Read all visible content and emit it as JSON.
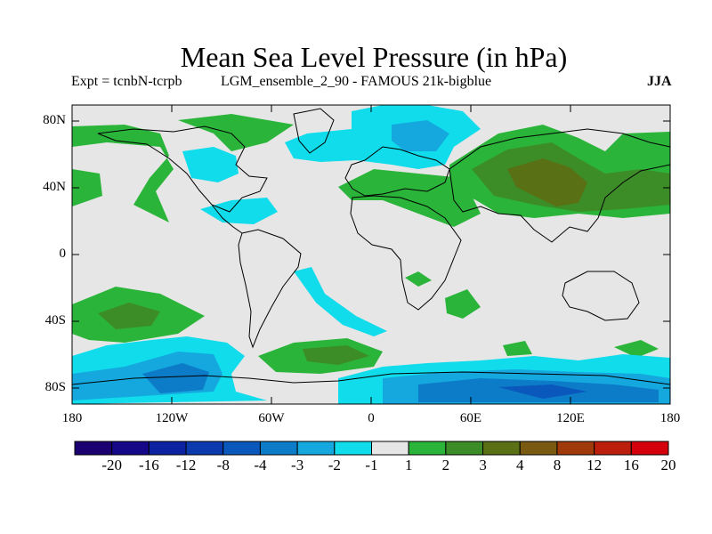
{
  "title": "Mean Sea Level Pressure (in hPa)",
  "subtitle_left": "Expt = tcnbN-tcrpb",
  "subtitle_mid": "LGM_ensemble_2_90 - FAMOUS 21k-bigblue",
  "season": "JJA",
  "lat_labels": [
    "80N",
    "40N",
    "0",
    "40S",
    "80S"
  ],
  "lon_labels": [
    "180",
    "120W",
    "60W",
    "0",
    "60E",
    "120E",
    "180"
  ],
  "colorbar": {
    "labels": [
      "-20",
      "-16",
      "-12",
      "-8",
      "-4",
      "-3",
      "-2",
      "-1",
      "1",
      "2",
      "3",
      "4",
      "8",
      "12",
      "16",
      "20"
    ],
    "colors": [
      "#1a0070",
      "#140888",
      "#0c22a0",
      "#0a3aae",
      "#0b58bc",
      "#0c7cc8",
      "#14a8de",
      "#10dcec",
      "#e6e6e6",
      "#2bb43a",
      "#3c8c28",
      "#5a7014",
      "#7a5a10",
      "#a03a0a",
      "#bc1e0c",
      "#d4000c"
    ]
  },
  "map_colors": {
    "ocean": "#e6e6e6",
    "neg1": "#10dcec",
    "neg2": "#14a8de",
    "neg3": "#0c7cc8",
    "neg4": "#0b58bc",
    "pos1": "#2bb43a",
    "pos2": "#3c8c28",
    "pos3": "#5a7014"
  }
}
